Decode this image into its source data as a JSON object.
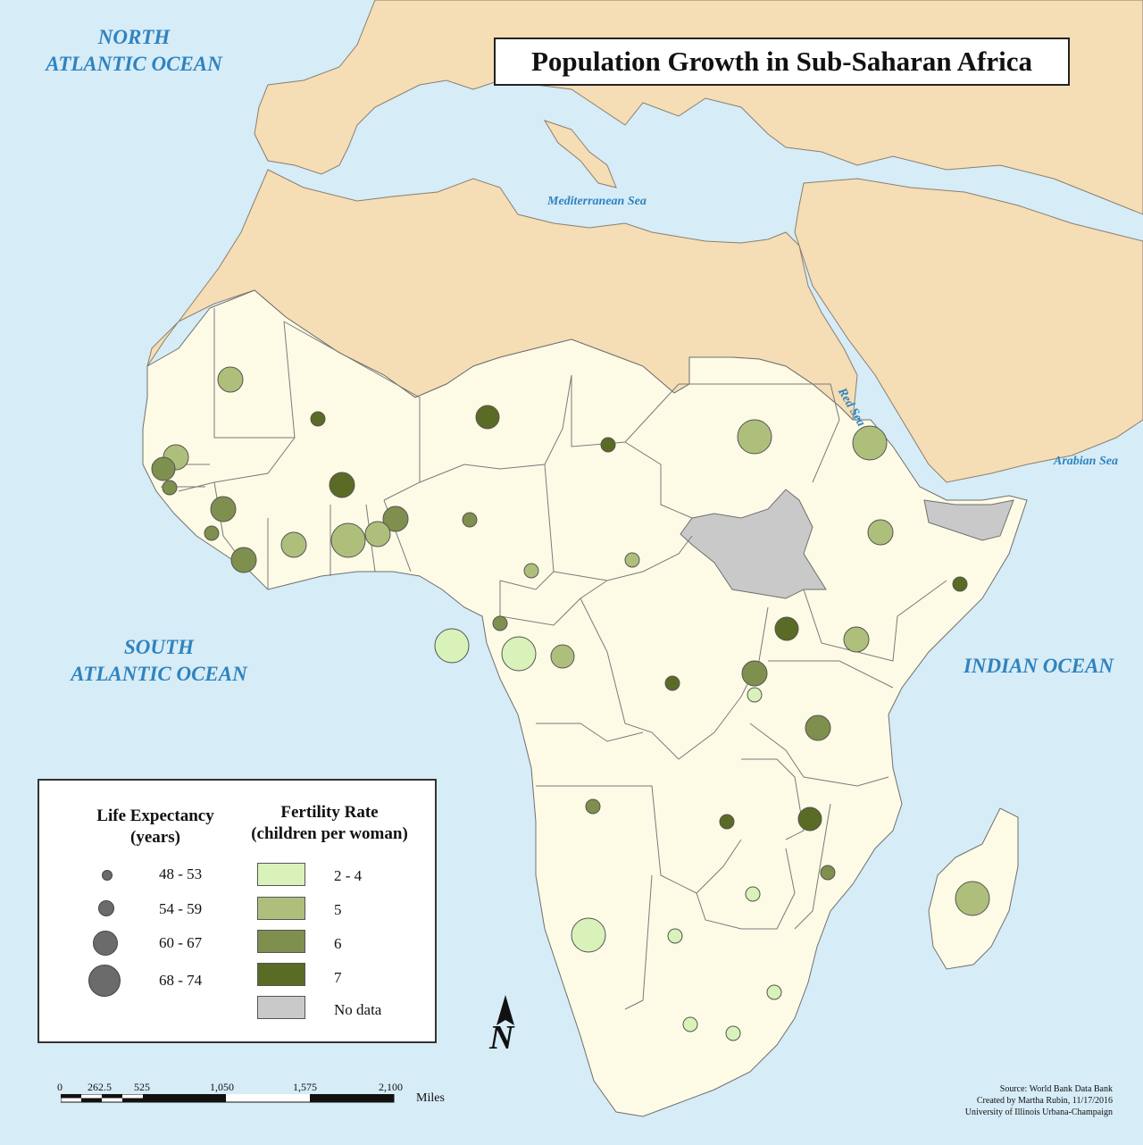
{
  "title": "Population Growth in Sub-Saharan Africa",
  "labels": {
    "north_atlantic": [
      "NORTH",
      "ATLANTIC OCEAN"
    ],
    "south_atlantic": [
      "SOUTH",
      "ATLANTIC OCEAN"
    ],
    "indian_ocean": "INDIAN OCEAN",
    "mediterranean": "Mediterranean Sea",
    "red_sea": "Red Sea",
    "arabian_sea": "Arabian Sea"
  },
  "colors": {
    "water": "#d6ecf7",
    "other_land": "#f5ddb5",
    "study_land": "#fdfbe6",
    "no_data": "#c9c9c9",
    "fert_2_4": "#d8f2b9",
    "fert_5": "#aebf7b",
    "fert_6": "#7f8f4e",
    "fert_7": "#5a6b26",
    "symbol_grey": "#6b6b6b"
  },
  "legend": {
    "life_title": [
      "Life Expectancy",
      "(years)"
    ],
    "fert_title": [
      "Fertility Rate",
      "(children per woman)"
    ],
    "life_classes": [
      "48 - 53",
      "54 - 59",
      "60 - 67",
      "68 - 74"
    ],
    "fert_classes": [
      "2 - 4",
      "5",
      "6",
      "7",
      "No data"
    ]
  },
  "north_label": "N",
  "scale": {
    "ticks": [
      "0",
      "262.5",
      "525",
      "1,050",
      "1,575",
      "2,100"
    ],
    "unit": "Miles"
  },
  "credits": [
    "Source: World Bank Data Bank",
    "Created by Martha Rubin, 11/17/2016",
    "University of Illinois Urbana-Champaign"
  ]
}
